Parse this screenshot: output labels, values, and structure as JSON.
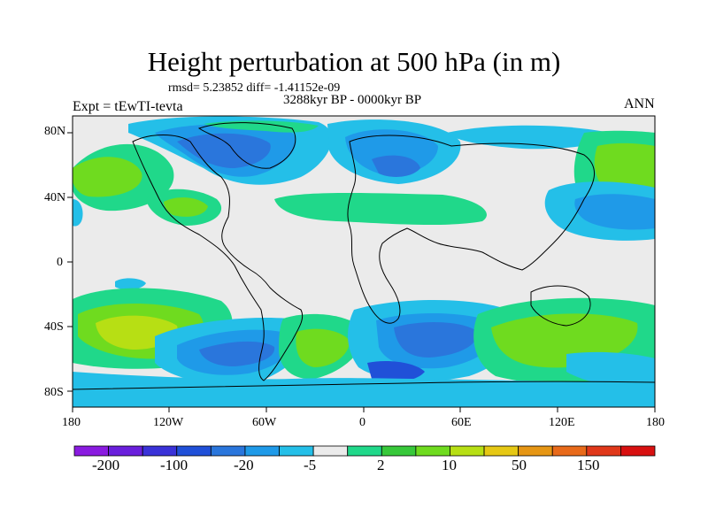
{
  "header": {
    "title": "Height perturbation at 500 hPa (in m)",
    "stats": "rmsd= 5.23852 diff= -1.41152e-09",
    "period": "3288kyr BP - 0000kyr BP",
    "experiment": "Expt = tEwTI-tevta",
    "season": "ANN"
  },
  "map": {
    "lat_labels": [
      "80N",
      "40N",
      "0",
      "40S",
      "80S"
    ],
    "lon_labels": [
      "180",
      "120W",
      "60W",
      "0",
      "60E",
      "120E",
      "180"
    ],
    "background_color": "#ebebeb"
  },
  "colorbar": {
    "colors": [
      "#8a1be0",
      "#6a1fdc",
      "#3a32d8",
      "#2050d8",
      "#2a76dc",
      "#1f9ae8",
      "#24bfe8",
      "#ebebeb",
      "#20d88a",
      "#37c83a",
      "#6fdb1f",
      "#b7df14",
      "#e6c814",
      "#e69614",
      "#e86a1a",
      "#e0381a",
      "#d81010"
    ],
    "labels": [
      "-200",
      "-100",
      "-20",
      "-5",
      "2",
      "10",
      "50",
      "150"
    ]
  }
}
